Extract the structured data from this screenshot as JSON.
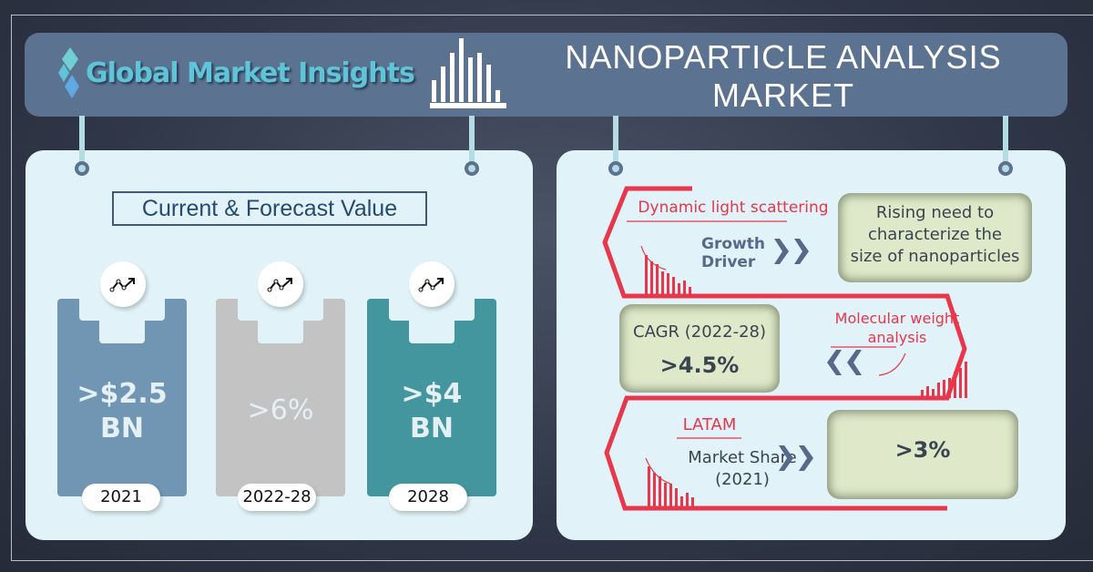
{
  "header": {
    "brand": "Global Market Insights",
    "title_line1": "NANOPARTICLE ANALYSIS",
    "title_line2": "MARKET"
  },
  "left": {
    "heading": "Current & Forecast Value",
    "cards": [
      {
        "value_line1": ">$2.5",
        "value_line2": "BN",
        "year": "2021",
        "color": "#7096b4",
        "icon": "trend-up-icon"
      },
      {
        "value_line1": ">6%",
        "value_line2": "",
        "year": "2022-28",
        "color": "#c3c3c3",
        "icon": "trend-up-icon"
      },
      {
        "value_line1": ">$4",
        "value_line2": "BN",
        "year": "2028",
        "color": "#43959e",
        "icon": "trend-up-icon"
      }
    ]
  },
  "right": {
    "row1": {
      "segment": "Dynamic light scattering",
      "label_line1": "Growth",
      "label_line2": "Driver",
      "box_line1": "Rising need to",
      "box_line2": "characterize the",
      "box_line3": "size of nanoparticles"
    },
    "row2": {
      "segment_line1": "Molecular weight",
      "segment_line2": "analysis",
      "box_label": "CAGR (2022-28)",
      "box_value": ">4.5%"
    },
    "row3": {
      "segment": "LATAM",
      "label_line1": "Market Share",
      "label_line2": "(2021)",
      "box_value": ">3%"
    }
  },
  "colors": {
    "accent_red": "#e8364a",
    "header": "#5b7290",
    "panel": "#e1f3f8",
    "box": "#dfe9c9"
  }
}
